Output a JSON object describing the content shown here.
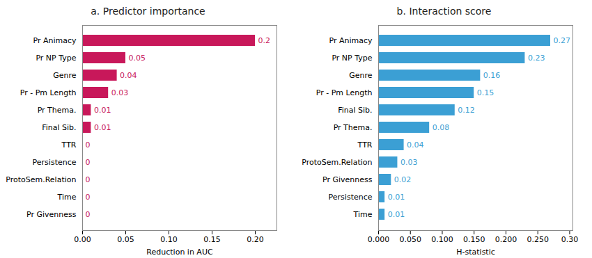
{
  "chart_data": [
    {
      "type": "bar",
      "orientation": "horizontal",
      "title": "a. Predictor importance",
      "categories": [
        "Pr Animacy",
        "Pr NP Type",
        "Genre",
        "Pr - Pm Length",
        "Pr Thema.",
        "Final Sib.",
        "TTR",
        "Persistence",
        "ProtoSem.Relation",
        "Time",
        "Pr Givenness"
      ],
      "values": [
        0.2,
        0.05,
        0.04,
        0.03,
        0.01,
        0.01,
        0.0,
        0.0,
        0.0,
        0.0,
        0.0
      ],
      "color": "#C8185A",
      "xlabel": "Reduction in AUC",
      "xlim": [
        0,
        0.225
      ],
      "xticks": [
        {
          "value": 0.0,
          "label": "0.00"
        },
        {
          "value": 0.05,
          "label": "0.05"
        },
        {
          "value": 0.1,
          "label": "0.10"
        },
        {
          "value": 0.15,
          "label": "0.15"
        },
        {
          "value": 0.2,
          "label": "0.20"
        }
      ],
      "data_labels": true,
      "grid": false
    },
    {
      "type": "bar",
      "orientation": "horizontal",
      "title": "b. Interaction score",
      "categories": [
        "Pr Animacy",
        "Pr NP Type",
        "Genre",
        "Pr - Pm Length",
        "Final Sib.",
        "Pr Thema.",
        "TTR",
        "ProtoSem.Relation",
        "Pr Givenness",
        "Persistence",
        "Time"
      ],
      "values": [
        0.27,
        0.23,
        0.16,
        0.15,
        0.12,
        0.08,
        0.04,
        0.03,
        0.02,
        0.01,
        0.01
      ],
      "color": "#3B9FD4",
      "xlabel": "H-statistic",
      "xlim": [
        0,
        0.305
      ],
      "xticks": [
        {
          "value": 0.0,
          "label": "0.000"
        },
        {
          "value": 0.05,
          "label": "0.050"
        },
        {
          "value": 0.1,
          "label": "0.100"
        },
        {
          "value": 0.15,
          "label": "0.150"
        },
        {
          "value": 0.2,
          "label": "0.200"
        },
        {
          "value": 0.25,
          "label": "0.250"
        },
        {
          "value": 0.3,
          "label": "0.30"
        }
      ],
      "data_labels": true,
      "grid": false
    }
  ]
}
